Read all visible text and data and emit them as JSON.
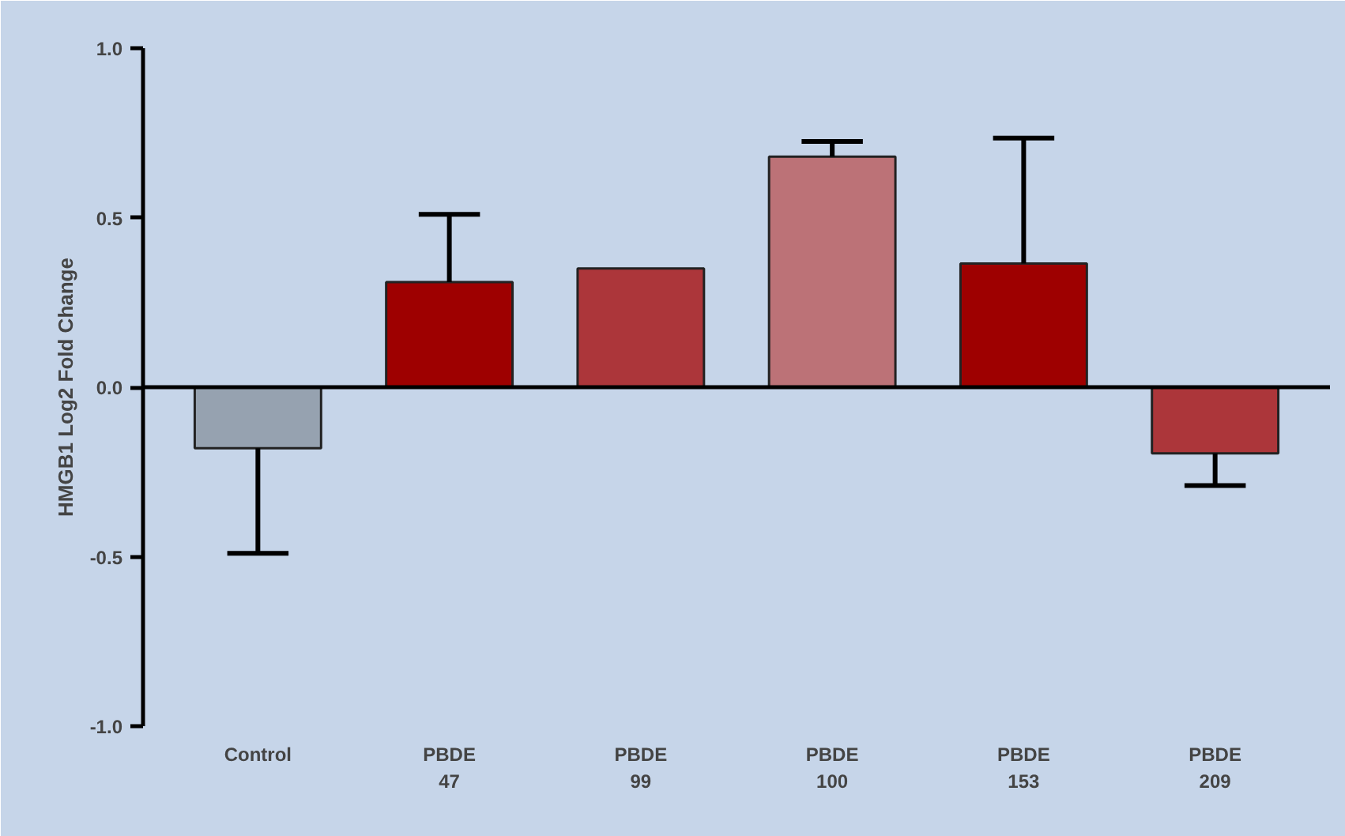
{
  "chart_data": {
    "type": "bar",
    "ylabel": "HMGB1 Log2 Fold Change",
    "categories": [
      "Control",
      "PBDE 47",
      "PBDE 99",
      "PBDE 100",
      "PBDE 153",
      "PBDE 209"
    ],
    "values": [
      -0.18,
      0.31,
      0.35,
      0.68,
      0.365,
      -0.195
    ],
    "colors": [
      "#96a2b0",
      "#9e0000",
      "#ac363a",
      "#bc7277",
      "#9e0000",
      "#ac363a"
    ],
    "errors": [
      [
        -0.49,
        -0.18
      ],
      [
        0.31,
        0.51
      ],
      null,
      [
        0.68,
        0.725
      ],
      [
        0.365,
        0.735
      ],
      [
        -0.29,
        -0.195
      ]
    ],
    "ylim": [
      -1.0,
      1.0
    ],
    "yticks": [
      {
        "value": -1.0,
        "label": "-1.0"
      },
      {
        "value": -0.5,
        "label": "-0.5"
      },
      {
        "value": 0.0,
        "label": "0.0"
      },
      {
        "value": 0.5,
        "label": "0.5"
      },
      {
        "value": 1.0,
        "label": "1.0"
      }
    ],
    "ref_lines": [
      {
        "axis": "y",
        "value": 0.0,
        "color": "#000000"
      }
    ]
  }
}
